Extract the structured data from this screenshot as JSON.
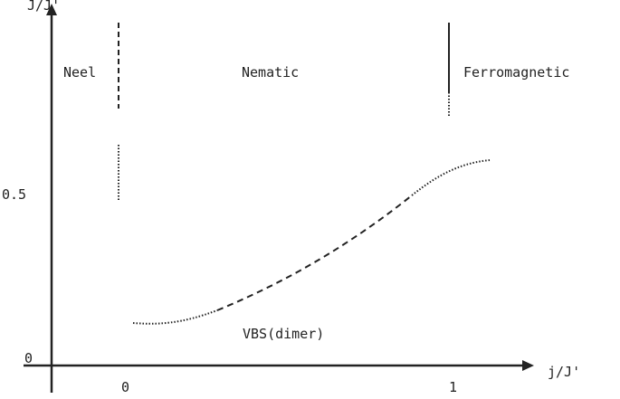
{
  "axes": {
    "y_label": "J/J'",
    "x_label": "j/J'",
    "x_ticks": [
      "0",
      "1"
    ],
    "y_ticks": [
      "0.5",
      "0"
    ]
  },
  "regions": {
    "neel": "Neel",
    "nematic": "Nematic",
    "ferromagnetic": "Ferromagnetic",
    "vbs": "VBS(dimer)"
  },
  "colors": {
    "ink": "#222222",
    "background": "#ffffff"
  }
}
